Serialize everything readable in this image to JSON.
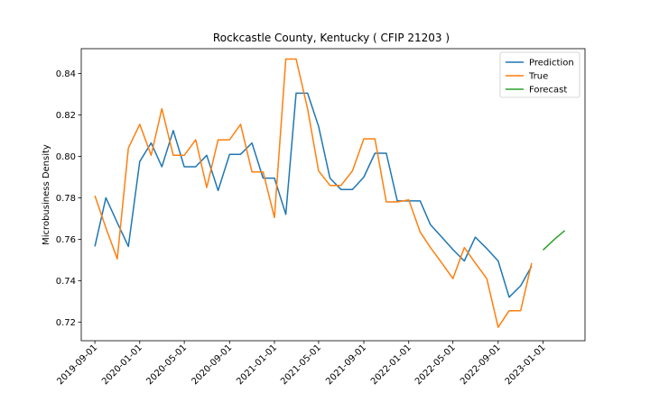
{
  "chart_data": {
    "type": "line",
    "title": "Rockcastle County, Kentucky ( CFIP 21203 )",
    "xlabel": "",
    "ylabel": "Microbusiness Density",
    "ylim": [
      0.711,
      0.852
    ],
    "xlim": [
      "2019-07-26",
      "2023-04-25"
    ],
    "yticks": [
      0.72,
      0.74,
      0.76,
      0.78,
      0.8,
      0.82,
      0.84
    ],
    "xticks": [
      "2019-09-01",
      "2020-01-01",
      "2020-05-01",
      "2020-09-01",
      "2021-01-01",
      "2021-05-01",
      "2021-09-01",
      "2022-01-01",
      "2022-05-01",
      "2022-09-01",
      "2023-01-01"
    ],
    "legend_position": "top-right",
    "series": [
      {
        "name": "Prediction",
        "color": "#1f77b4",
        "x": [
          "2019-09-01",
          "2019-10-01",
          "2019-11-01",
          "2019-12-01",
          "2020-01-01",
          "2020-02-01",
          "2020-03-01",
          "2020-04-01",
          "2020-05-01",
          "2020-06-01",
          "2020-07-01",
          "2020-08-01",
          "2020-09-01",
          "2020-10-01",
          "2020-11-01",
          "2020-12-01",
          "2021-01-01",
          "2021-02-01",
          "2021-03-01",
          "2021-04-01",
          "2021-05-01",
          "2021-06-01",
          "2021-07-01",
          "2021-08-01",
          "2021-09-01",
          "2021-10-01",
          "2021-11-01",
          "2021-12-01",
          "2022-01-01",
          "2022-02-01",
          "2022-03-01",
          "2022-04-01",
          "2022-05-01",
          "2022-06-01",
          "2022-07-01",
          "2022-08-01",
          "2022-09-01",
          "2022-10-01",
          "2022-11-01",
          "2022-12-01"
        ],
        "values": [
          0.7565,
          0.78,
          0.768,
          0.7565,
          0.7975,
          0.8065,
          0.795,
          0.8125,
          0.795,
          0.795,
          0.8005,
          0.7835,
          0.801,
          0.801,
          0.8065,
          0.7895,
          0.7895,
          0.772,
          0.8305,
          0.8305,
          0.8145,
          0.7895,
          0.784,
          0.784,
          0.79,
          0.8015,
          0.8015,
          0.7785,
          0.7785,
          0.7785,
          0.767,
          0.761,
          0.755,
          0.7495,
          0.761,
          0.7555,
          0.7495,
          0.732,
          0.7375,
          0.747
        ]
      },
      {
        "name": "True",
        "color": "#ff7f0e",
        "x": [
          "2019-09-01",
          "2019-10-01",
          "2019-11-01",
          "2019-12-01",
          "2020-01-01",
          "2020-02-01",
          "2020-03-01",
          "2020-04-01",
          "2020-05-01",
          "2020-06-01",
          "2020-07-01",
          "2020-08-01",
          "2020-09-01",
          "2020-10-01",
          "2020-11-01",
          "2020-12-01",
          "2021-01-01",
          "2021-02-01",
          "2021-03-01",
          "2021-04-01",
          "2021-05-01",
          "2021-06-01",
          "2021-07-01",
          "2021-08-01",
          "2021-09-01",
          "2021-10-01",
          "2021-11-01",
          "2021-12-01",
          "2022-01-01",
          "2022-02-01",
          "2022-03-01",
          "2022-04-01",
          "2022-05-01",
          "2022-06-01",
          "2022-07-01",
          "2022-08-01",
          "2022-09-01",
          "2022-10-01",
          "2022-11-01",
          "2022-12-01"
        ],
        "values": [
          0.781,
          0.7655,
          0.7505,
          0.804,
          0.8155,
          0.8005,
          0.823,
          0.8005,
          0.8005,
          0.808,
          0.785,
          0.808,
          0.808,
          0.8155,
          0.7925,
          0.7925,
          0.7705,
          0.847,
          0.847,
          0.823,
          0.793,
          0.786,
          0.786,
          0.793,
          0.8085,
          0.8085,
          0.778,
          0.778,
          0.779,
          0.7635,
          0.756,
          0.7485,
          0.741,
          0.756,
          0.7485,
          0.741,
          0.7175,
          0.7255,
          0.7255,
          0.7485
        ]
      },
      {
        "name": "Forecast",
        "color": "#2ca02c",
        "x": [
          "2023-01-01",
          "2023-02-01",
          "2023-03-01"
        ],
        "values": [
          0.7548,
          0.76,
          0.7642
        ]
      }
    ]
  }
}
